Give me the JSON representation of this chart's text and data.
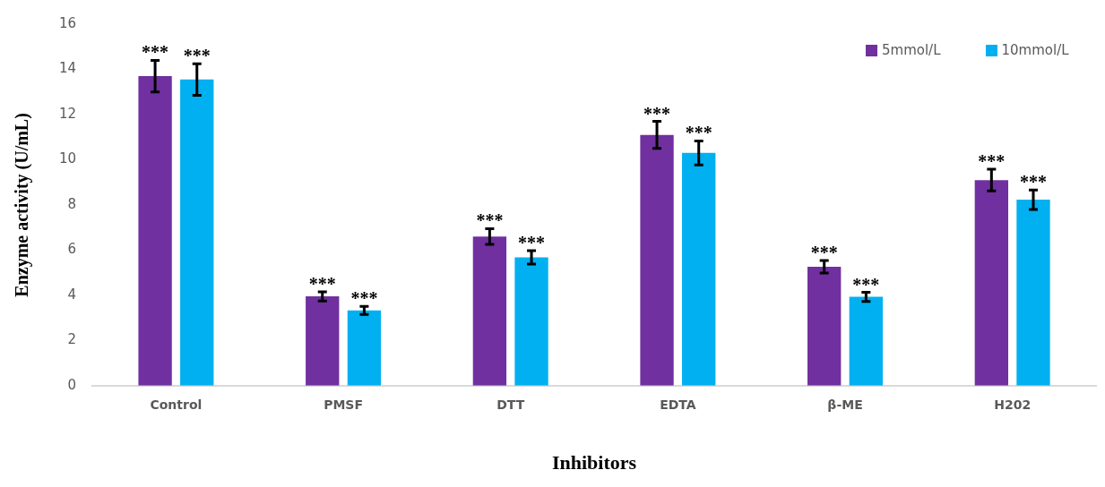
{
  "chart_data": {
    "type": "bar",
    "xlabel": "Inhibitors",
    "ylabel": "Enzyme activity (U/mL)",
    "categories": [
      "Control",
      "PMSF",
      "DTT",
      "EDTA",
      "β-ME",
      "H202"
    ],
    "series": [
      {
        "name": "5mmol/L",
        "color": "#7030a0",
        "values": [
          13.7,
          3.95,
          6.6,
          11.1,
          5.26,
          9.1
        ],
        "errors": [
          0.7,
          0.2,
          0.35,
          0.6,
          0.28,
          0.48
        ]
      },
      {
        "name": "10mmol/L",
        "color": "#00b0f0",
        "values": [
          13.55,
          3.33,
          5.68,
          10.3,
          3.93,
          8.23
        ],
        "errors": [
          0.7,
          0.18,
          0.3,
          0.53,
          0.2,
          0.43
        ]
      }
    ],
    "ylim": [
      0,
      16
    ],
    "yticks": [
      0,
      2,
      4,
      6,
      8,
      10,
      12,
      14,
      16
    ],
    "grid": false,
    "legend": "top right",
    "annotations": [
      "***",
      "***",
      "***",
      "***",
      "***",
      "***",
      "***",
      "***",
      "***",
      "***",
      "***",
      "***"
    ]
  }
}
